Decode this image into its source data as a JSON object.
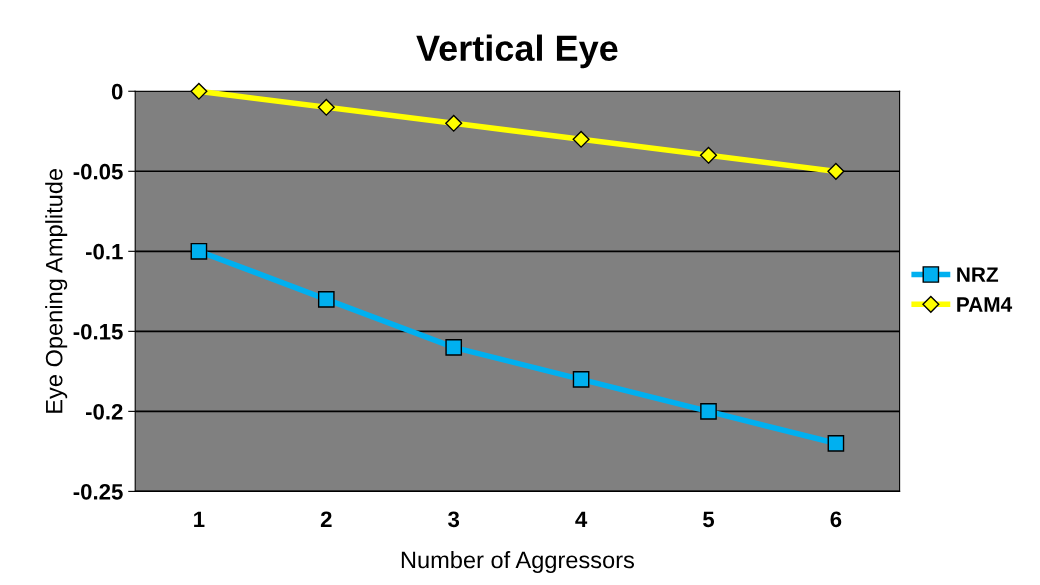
{
  "chart_data": {
    "type": "line",
    "title": "Vertical Eye",
    "xlabel": "Number of Aggressors",
    "ylabel": "Eye Opening Amplitude",
    "categories": [
      "1",
      "2",
      "3",
      "4",
      "5",
      "6"
    ],
    "series": [
      {
        "name": "NRZ",
        "color": "#00b0f0",
        "marker": "square",
        "values": [
          -0.1,
          -0.13,
          -0.16,
          -0.18,
          -0.2,
          -0.22
        ]
      },
      {
        "name": "PAM4",
        "color": "#ffff00",
        "marker": "diamond",
        "values": [
          0,
          -0.01,
          -0.02,
          -0.03,
          -0.04,
          -0.05
        ]
      }
    ],
    "ylim": [
      -0.25,
      0
    ],
    "yticks": [
      -0.25,
      -0.2,
      -0.15,
      -0.1,
      -0.05,
      0
    ],
    "grid": "y",
    "legend": "right",
    "line_style": "solid"
  }
}
